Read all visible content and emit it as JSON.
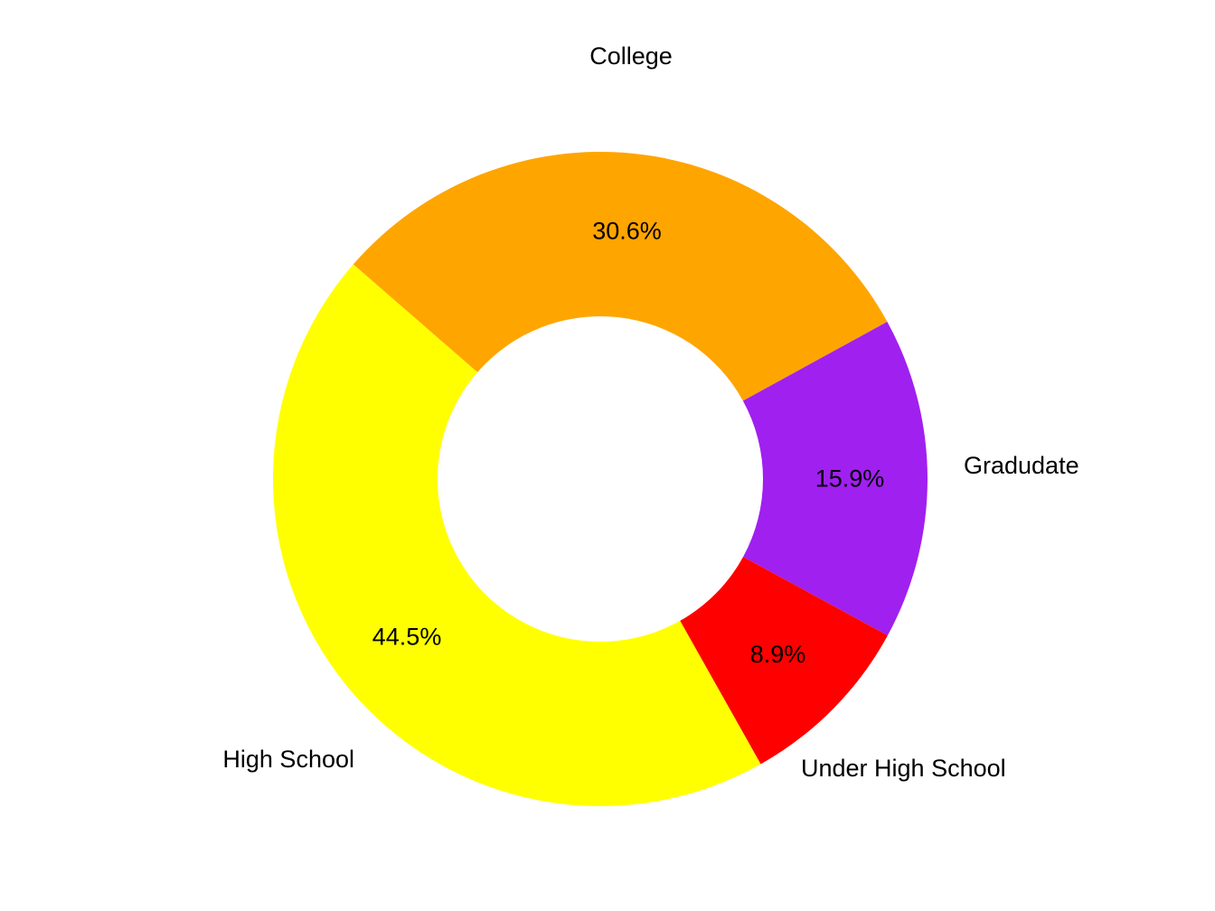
{
  "chart_data": {
    "type": "pie",
    "style": "donut",
    "slices": [
      {
        "label": "College",
        "value": 30.6,
        "value_label": "30.6%",
        "color": "#FFA500"
      },
      {
        "label": "Gradudate",
        "value": 15.9,
        "value_label": "15.9%",
        "color": "#A020F0"
      },
      {
        "label": "Under High School",
        "value": 8.9,
        "value_label": "8.9%",
        "color": "#FF0000"
      },
      {
        "label": "High School",
        "value": 44.5,
        "value_label": "44.5%",
        "color": "#FFFF00"
      }
    ],
    "legend": "none"
  }
}
